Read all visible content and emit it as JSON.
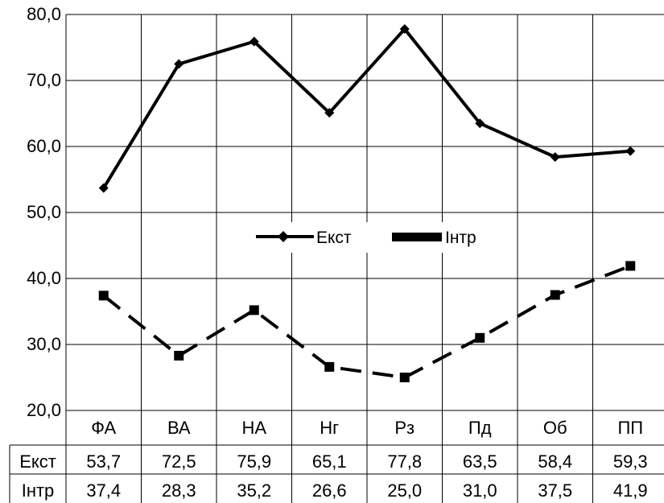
{
  "chart_data": {
    "type": "line",
    "categories": [
      "ФА",
      "ВА",
      "НА",
      "Нг",
      "Рз",
      "Пд",
      "Об",
      "ПП"
    ],
    "series": [
      {
        "name": "Екст",
        "values": [
          53.7,
          72.5,
          75.9,
          65.1,
          77.8,
          63.5,
          58.4,
          59.3
        ],
        "labels": [
          "53,7",
          "72,5",
          "75,9",
          "65,1",
          "77,8",
          "63,5",
          "58,4",
          "59,3"
        ],
        "style": "solid",
        "marker": "diamond"
      },
      {
        "name": "Інтр",
        "values": [
          37.4,
          28.3,
          35.2,
          26.6,
          25.0,
          31.0,
          37.5,
          41.9
        ],
        "labels": [
          "37,4",
          "28,3",
          "35,2",
          "26,6",
          "25,0",
          "31,0",
          "37,5",
          "41,9"
        ],
        "style": "dashed",
        "marker": "square"
      }
    ],
    "ylim": [
      20,
      80
    ],
    "yticks": [
      20,
      30,
      40,
      50,
      60,
      70,
      80
    ],
    "ytick_labels": [
      "20,0",
      "30,0",
      "40,0",
      "50,0",
      "60,0",
      "70,0",
      "80,0"
    ],
    "grid": true,
    "legend": "center",
    "data_table": true,
    "line_color": "#000000"
  }
}
